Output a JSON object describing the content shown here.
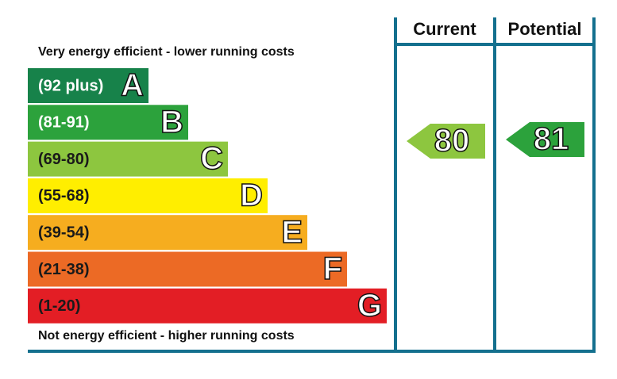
{
  "top_label": "Very energy efficient - lower running costs",
  "bottom_label": "Not energy efficient - higher running costs",
  "columns": [
    "Current",
    "Potential"
  ],
  "bands": [
    {
      "range": "(92 plus)",
      "letter": "A",
      "color": "#17824a",
      "text_color": "#ffffff"
    },
    {
      "range": "(81-91)",
      "letter": "B",
      "color": "#2ca23c",
      "text_color": "#ffffff"
    },
    {
      "range": "(69-80)",
      "letter": "C",
      "color": "#8dc63f",
      "text_color": "#1a1a1a"
    },
    {
      "range": "(55-68)",
      "letter": "D",
      "color": "#ffee00",
      "text_color": "#1a1a1a"
    },
    {
      "range": "(39-54)",
      "letter": "E",
      "color": "#f6ad1f",
      "text_color": "#1a1a1a"
    },
    {
      "range": "(21-38)",
      "letter": "F",
      "color": "#ec6a25",
      "text_color": "#1a1a1a"
    },
    {
      "range": "(1-20)",
      "letter": "G",
      "color": "#e31e25",
      "text_color": "#1a1a1a"
    }
  ],
  "ratings": [
    {
      "value": "80",
      "color": "#8dc63f"
    },
    {
      "value": "81",
      "color": "#2ca23c"
    }
  ]
}
